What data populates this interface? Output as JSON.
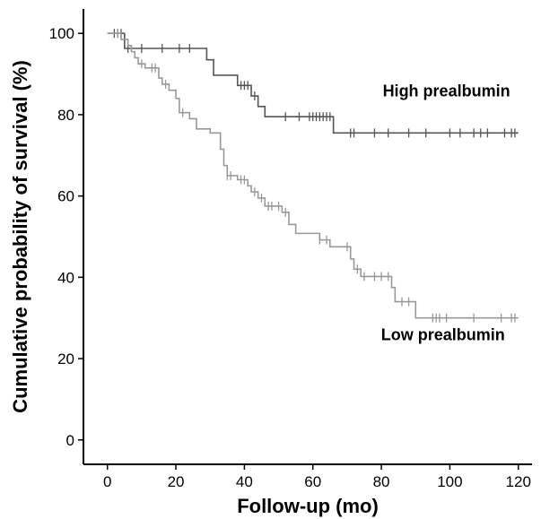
{
  "chart_data": {
    "type": "line",
    "subtype": "kaplan-meier-step",
    "xlabel": "Follow-up (mo)",
    "ylabel": "Cumulative probability of survival (%)",
    "xlim": [
      -7,
      124
    ],
    "ylim": [
      -6,
      106
    ],
    "xticks": [
      0,
      20,
      40,
      60,
      80,
      100,
      120
    ],
    "yticks": [
      0,
      20,
      40,
      60,
      80,
      100
    ],
    "grid": false,
    "series": [
      {
        "name": "High prealbumin",
        "color": "#555555",
        "steps": [
          [
            0,
            100
          ],
          [
            5,
            96.3
          ],
          [
            29,
            93.5
          ],
          [
            31,
            89.7
          ],
          [
            38,
            87.2
          ],
          [
            42,
            84.6
          ],
          [
            44,
            82.0
          ],
          [
            46,
            79.5
          ],
          [
            66,
            75.5
          ],
          [
            120,
            75.5
          ]
        ],
        "censored": [
          [
            2,
            100
          ],
          [
            3,
            100
          ],
          [
            4,
            100
          ],
          [
            6,
            96.3
          ],
          [
            10,
            96.3
          ],
          [
            16,
            96.3
          ],
          [
            21,
            96.3
          ],
          [
            24,
            96.3
          ],
          [
            39,
            87.2
          ],
          [
            40,
            87.2
          ],
          [
            41,
            87.2
          ],
          [
            43,
            84.6
          ],
          [
            52,
            79.5
          ],
          [
            56,
            79.5
          ],
          [
            59,
            79.5
          ],
          [
            60,
            79.5
          ],
          [
            61,
            79.5
          ],
          [
            62,
            79.5
          ],
          [
            63,
            79.5
          ],
          [
            64,
            79.5
          ],
          [
            65,
            79.5
          ],
          [
            71,
            75.5
          ],
          [
            72,
            75.5
          ],
          [
            78,
            75.5
          ],
          [
            82,
            75.5
          ],
          [
            88,
            75.5
          ],
          [
            93,
            75.5
          ],
          [
            100,
            75.5
          ],
          [
            103,
            75.5
          ],
          [
            107,
            75.5
          ],
          [
            109,
            75.5
          ],
          [
            111,
            75.5
          ],
          [
            116,
            75.5
          ],
          [
            118,
            75.5
          ],
          [
            119,
            75.5
          ]
        ],
        "label": "High prealbumin"
      },
      {
        "name": "Low prealbumin",
        "color": "#999999",
        "steps": [
          [
            0,
            100
          ],
          [
            4,
            98.5
          ],
          [
            6,
            97
          ],
          [
            7,
            95.5
          ],
          [
            8,
            94
          ],
          [
            9,
            92.5
          ],
          [
            11,
            91.5
          ],
          [
            15,
            89
          ],
          [
            16,
            87.5
          ],
          [
            18,
            86
          ],
          [
            20,
            84
          ],
          [
            21,
            80.5
          ],
          [
            24,
            79
          ],
          [
            26,
            76.5
          ],
          [
            30,
            75.5
          ],
          [
            33,
            71.5
          ],
          [
            34,
            67.5
          ],
          [
            35,
            65
          ],
          [
            38,
            64
          ],
          [
            41,
            62.5
          ],
          [
            42,
            61
          ],
          [
            44,
            59.5
          ],
          [
            46,
            57.5
          ],
          [
            51,
            56
          ],
          [
            53,
            53
          ],
          [
            55,
            50.8
          ],
          [
            62,
            49.2
          ],
          [
            65,
            47.5
          ],
          [
            71,
            44.5
          ],
          [
            72,
            42
          ],
          [
            74,
            40.2
          ],
          [
            83,
            37.5
          ],
          [
            84,
            34
          ],
          [
            90,
            30
          ],
          [
            120,
            30
          ]
        ],
        "censored": [
          [
            3,
            100
          ],
          [
            10,
            92.5
          ],
          [
            13,
            91.5
          ],
          [
            14,
            91.5
          ],
          [
            17,
            87.5
          ],
          [
            22,
            80.5
          ],
          [
            35,
            65
          ],
          [
            36,
            65
          ],
          [
            39,
            64
          ],
          [
            40,
            64
          ],
          [
            43,
            61
          ],
          [
            45,
            59.5
          ],
          [
            47,
            57.5
          ],
          [
            48,
            57.5
          ],
          [
            50,
            57.5
          ],
          [
            52,
            56
          ],
          [
            62,
            49.2
          ],
          [
            64,
            49.2
          ],
          [
            70,
            47.5
          ],
          [
            73,
            42
          ],
          [
            75,
            40.2
          ],
          [
            78,
            40.2
          ],
          [
            80,
            40.2
          ],
          [
            82,
            40.2
          ],
          [
            86,
            34
          ],
          [
            88,
            34
          ],
          [
            95,
            30
          ],
          [
            96,
            30
          ],
          [
            97,
            30
          ],
          [
            99,
            30
          ],
          [
            107,
            30
          ],
          [
            115,
            30
          ],
          [
            118,
            30
          ],
          [
            119,
            30
          ]
        ],
        "label": "Low prealbumin"
      }
    ]
  }
}
